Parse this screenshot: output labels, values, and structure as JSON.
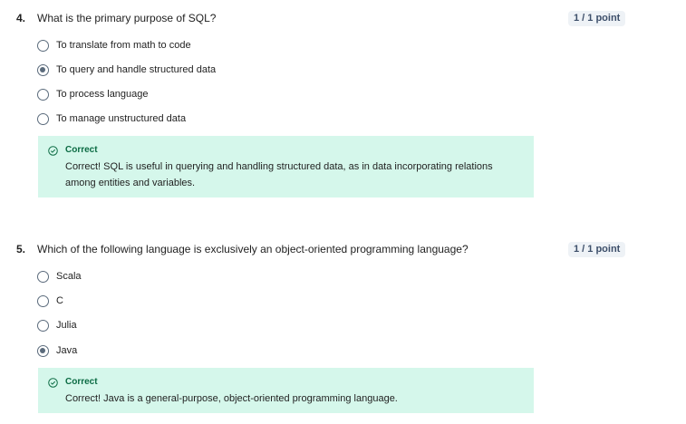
{
  "questions": [
    {
      "number": "4.",
      "text": "What is the primary purpose of SQL?",
      "score": "1 / 1 point",
      "options": [
        {
          "label": "To translate from math to code",
          "selected": false
        },
        {
          "label": "To query and handle structured data",
          "selected": true
        },
        {
          "label": "To process language",
          "selected": false
        },
        {
          "label": "To manage unstructured data",
          "selected": false
        }
      ],
      "feedback": {
        "title": "Correct",
        "text": "Correct! SQL is useful in querying and handling structured data, as in data incorporating relations among entities and variables."
      }
    },
    {
      "number": "5.",
      "text": "Which of the following language is  exclusively  an object-oriented programming language?",
      "score": "1 / 1 point",
      "options": [
        {
          "label": "Scala",
          "selected": false
        },
        {
          "label": "C",
          "selected": false
        },
        {
          "label": "Julia",
          "selected": false
        },
        {
          "label": "Java",
          "selected": true
        }
      ],
      "feedback": {
        "title": "Correct",
        "text": "Correct! Java is a general-purpose, object-oriented programming language."
      }
    }
  ],
  "colors": {
    "feedback_bg": "#d5f7eb",
    "correct_text": "#0b6b43",
    "score_bg": "#eef2f6",
    "radio": "#5b6b7c"
  },
  "icons": {
    "feedback": "check-circle-icon",
    "option": "radio-button"
  }
}
